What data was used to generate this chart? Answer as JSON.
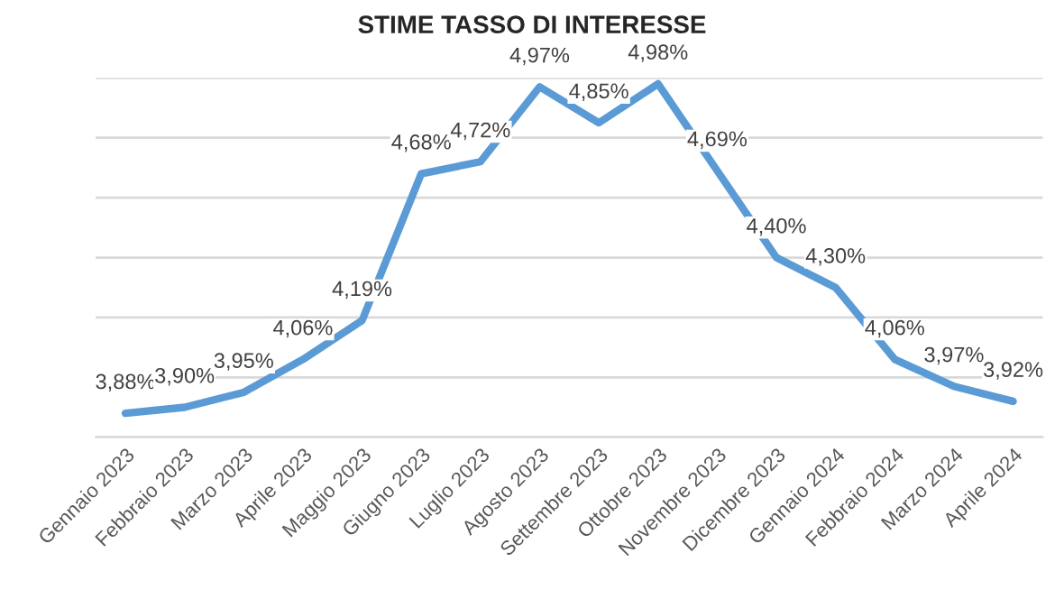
{
  "chart_data": {
    "type": "line",
    "title": "STIME TASSO DI INTERESSE",
    "categories": [
      "Gennaio 2023",
      "Febbraio 2023",
      "Marzo 2023",
      "Aprile 2023",
      "Maggio 2023",
      "Giugno 2023",
      "Luglio 2023",
      "Agosto 2023",
      "Settembre 2023",
      "Ottobre 2023",
      "Novembre 2023",
      "Dicembre 2023",
      "Gennaio 2024",
      "Febbraio 2024",
      "Marzo 2024",
      "Aprile 2024"
    ],
    "series": [
      {
        "color": "#5b9bd5",
        "values": [
          3.88,
          3.9,
          3.95,
          4.06,
          4.19,
          4.68,
          4.72,
          4.97,
          4.85,
          4.98,
          4.69,
          4.4,
          4.3,
          4.06,
          3.97,
          3.92
        ],
        "value_labels": [
          "3,88%",
          "3,90%",
          "3,95%",
          "4,06%",
          "4,19%",
          "4,68%",
          "4,72%",
          "4,97%",
          "4,85%",
          "4,98%",
          "4,69%",
          "4,40%",
          "4,30%",
          "4,06%",
          "3,97%",
          "3,92%"
        ]
      }
    ],
    "ylim": [
      3.8,
      5.0
    ],
    "yticks": [
      {
        "value": 3.8,
        "label": null
      },
      {
        "value": 4.0,
        "label": null
      },
      {
        "value": 4.2,
        "label": null
      },
      {
        "value": 4.4,
        "label": null
      },
      {
        "value": 4.6,
        "label": null
      },
      {
        "value": 4.8,
        "label": null
      },
      {
        "value": 5.0,
        "label": null
      }
    ],
    "grid": "y",
    "tick_labels": "x",
    "legend": false,
    "marker": "none",
    "line_style": "solid"
  }
}
